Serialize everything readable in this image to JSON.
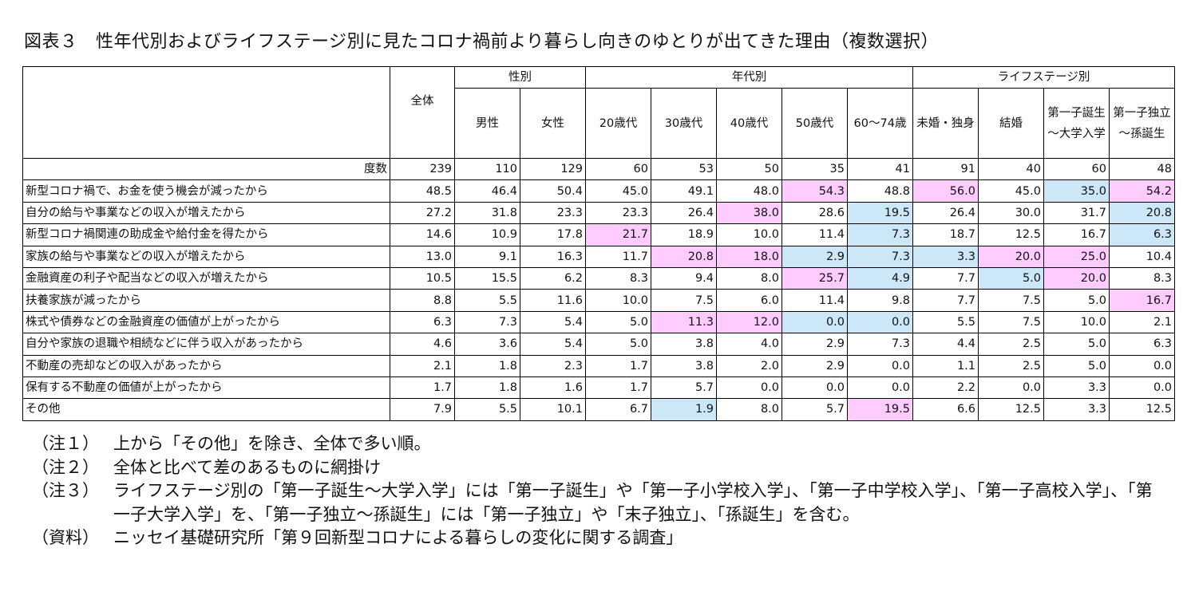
{
  "title": "図表３　性年代別およびライフステージ別に見たコロナ禍前より暮らし向きのゆとりが出てきた理由（複数選択）",
  "groups": {
    "sex": "性別",
    "age": "年代別",
    "life": "ライフステージ別"
  },
  "columns": [
    "全体",
    "男性",
    "女性",
    "20歳代",
    "30歳代",
    "40歳代",
    "50歳代",
    "60～74歳",
    "未婚・独身",
    "結婚",
    "第一子誕生～大学入学",
    "第一子独立～孫誕生"
  ],
  "count_label": "度数",
  "counts": [
    "239",
    "110",
    "129",
    "60",
    "53",
    "50",
    "35",
    "41",
    "91",
    "40",
    "60",
    "48"
  ],
  "rows": [
    {
      "label": "新型コロナ禍で、お金を使う機会が減ったから",
      "values": [
        "48.5",
        "46.4",
        "50.4",
        "45.0",
        "49.1",
        "48.0",
        "54.3",
        "48.8",
        "56.0",
        "45.0",
        "35.0",
        "54.2"
      ],
      "hl": [
        "",
        "",
        "",
        "",
        "",
        "",
        "p",
        "",
        "p",
        "",
        "b",
        "p"
      ]
    },
    {
      "label": "自分の給与や事業などの収入が増えたから",
      "values": [
        "27.2",
        "31.8",
        "23.3",
        "23.3",
        "26.4",
        "38.0",
        "28.6",
        "19.5",
        "26.4",
        "30.0",
        "31.7",
        "20.8"
      ],
      "hl": [
        "",
        "",
        "",
        "",
        "",
        "p",
        "",
        "b",
        "",
        "",
        "",
        "b"
      ]
    },
    {
      "label": "新型コロナ禍関連の助成金や給付金を得たから",
      "values": [
        "14.6",
        "10.9",
        "17.8",
        "21.7",
        "18.9",
        "10.0",
        "11.4",
        "7.3",
        "18.7",
        "12.5",
        "16.7",
        "6.3"
      ],
      "hl": [
        "",
        "",
        "",
        "p",
        "",
        "",
        "",
        "b",
        "",
        "",
        "",
        "b"
      ]
    },
    {
      "label": "家族の給与や事業などの収入が増えたから",
      "values": [
        "13.0",
        "9.1",
        "16.3",
        "11.7",
        "20.8",
        "18.0",
        "2.9",
        "7.3",
        "3.3",
        "20.0",
        "25.0",
        "10.4"
      ],
      "hl": [
        "",
        "",
        "",
        "",
        "p",
        "p",
        "b",
        "b",
        "b",
        "p",
        "p",
        ""
      ]
    },
    {
      "label": "金融資産の利子や配当などの収入が増えたから",
      "values": [
        "10.5",
        "15.5",
        "6.2",
        "8.3",
        "9.4",
        "8.0",
        "25.7",
        "4.9",
        "7.7",
        "5.0",
        "20.0",
        "8.3"
      ],
      "hl": [
        "",
        "",
        "",
        "",
        "",
        "",
        "p",
        "b",
        "",
        "b",
        "p",
        ""
      ]
    },
    {
      "label": "扶養家族が減ったから",
      "values": [
        "8.8",
        "5.5",
        "11.6",
        "10.0",
        "7.5",
        "6.0",
        "11.4",
        "9.8",
        "7.7",
        "7.5",
        "5.0",
        "16.7"
      ],
      "hl": [
        "",
        "",
        "",
        "",
        "",
        "",
        "",
        "",
        "",
        "",
        "",
        "p"
      ]
    },
    {
      "label": "株式や債券などの金融資産の価値が上がったから",
      "values": [
        "6.3",
        "7.3",
        "5.4",
        "5.0",
        "11.3",
        "12.0",
        "0.0",
        "0.0",
        "5.5",
        "7.5",
        "10.0",
        "2.1"
      ],
      "hl": [
        "",
        "",
        "",
        "",
        "p",
        "p",
        "b",
        "b",
        "",
        "",
        "",
        ""
      ]
    },
    {
      "label": "自分や家族の退職や相続などに伴う収入があったから",
      "values": [
        "4.6",
        "3.6",
        "5.4",
        "5.0",
        "3.8",
        "4.0",
        "2.9",
        "7.3",
        "4.4",
        "2.5",
        "5.0",
        "6.3"
      ],
      "hl": [
        "",
        "",
        "",
        "",
        "",
        "",
        "",
        "",
        "",
        "",
        "",
        ""
      ]
    },
    {
      "label": "不動産の売却などの収入があったから",
      "values": [
        "2.1",
        "1.8",
        "2.3",
        "1.7",
        "3.8",
        "2.0",
        "2.9",
        "0.0",
        "1.1",
        "2.5",
        "5.0",
        "0.0"
      ],
      "hl": [
        "",
        "",
        "",
        "",
        "",
        "",
        "",
        "",
        "",
        "",
        "",
        ""
      ]
    },
    {
      "label": "保有する不動産の価値が上がったから",
      "values": [
        "1.7",
        "1.8",
        "1.6",
        "1.7",
        "5.7",
        "0.0",
        "0.0",
        "0.0",
        "2.2",
        "0.0",
        "3.3",
        "0.0"
      ],
      "hl": [
        "",
        "",
        "",
        "",
        "",
        "",
        "",
        "",
        "",
        "",
        "",
        ""
      ]
    },
    {
      "label": "その他",
      "values": [
        "7.9",
        "5.5",
        "10.1",
        "6.7",
        "1.9",
        "8.0",
        "5.7",
        "19.5",
        "6.6",
        "12.5",
        "3.3",
        "12.5"
      ],
      "hl": [
        "",
        "",
        "",
        "",
        "b",
        "",
        "",
        "p",
        "",
        "",
        "",
        ""
      ]
    }
  ],
  "colors": {
    "p": "#ffccff",
    "b": "#cce8f8"
  },
  "notes": [
    {
      "label": "（注１）",
      "text": "上から「その他」を除き、全体で多い順。"
    },
    {
      "label": "（注２）",
      "text": "全体と比べて差のあるものに網掛け"
    },
    {
      "label": "（注３）",
      "text": "ライフステージ別の「第一子誕生～大学入学」には「第一子誕生」や「第一子小学校入学」、「第一子中学校入学」、「第一子高校入学」、「第一子大学入学」を、「第一子独立～孫誕生」には「第一子独立」や「末子独立」、「孫誕生」を含む。"
    },
    {
      "label": "（資料）",
      "text": "ニッセイ基礎研究所「第９回新型コロナによる暮らしの変化に関する調査」"
    }
  ]
}
